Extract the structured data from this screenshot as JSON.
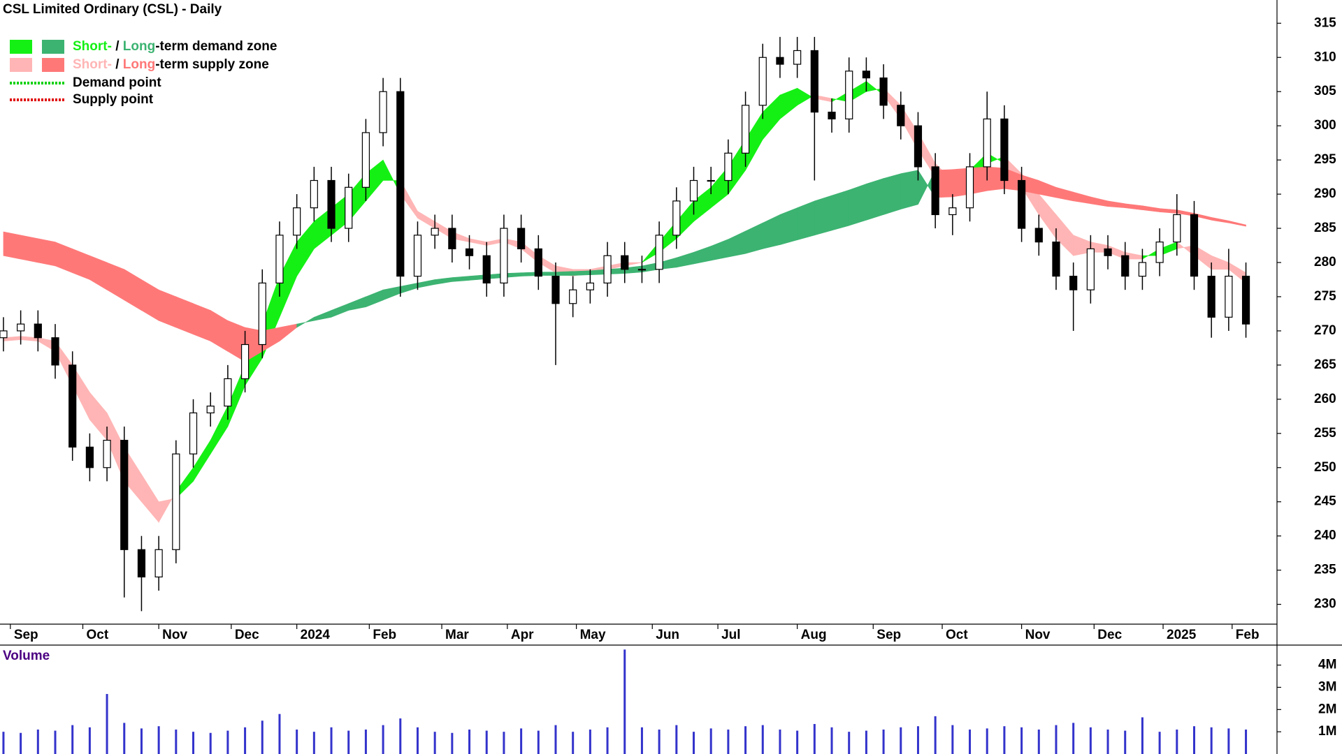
{
  "chart_data": {
    "type": "candlestick",
    "title": "CSL Limited Ordinary (CSL) - Daily",
    "xlim": [
      0,
      370
    ],
    "xticks": [
      {
        "value": 3,
        "label": "Sep"
      },
      {
        "value": 24,
        "label": "Oct"
      },
      {
        "value": 46,
        "label": "Nov"
      },
      {
        "value": 67,
        "label": "Dec"
      },
      {
        "value": 86,
        "label": "2024"
      },
      {
        "value": 107,
        "label": "Feb"
      },
      {
        "value": 128,
        "label": "Mar"
      },
      {
        "value": 147,
        "label": "Apr"
      },
      {
        "value": 167,
        "label": "May"
      },
      {
        "value": 189,
        "label": "Jun"
      },
      {
        "value": 208,
        "label": "Jul"
      },
      {
        "value": 231,
        "label": "Aug"
      },
      {
        "value": 253,
        "label": "Sep"
      },
      {
        "value": 273,
        "label": "Oct"
      },
      {
        "value": 296,
        "label": "Nov"
      },
      {
        "value": 317,
        "label": "Dec"
      },
      {
        "value": 337,
        "label": "2025"
      },
      {
        "value": 357,
        "label": "Feb"
      }
    ],
    "ylim": [
      227.1,
      318.4
    ],
    "yticks": [
      230,
      235,
      240,
      245,
      250,
      255,
      260,
      265,
      270,
      275,
      280,
      285,
      290,
      295,
      300,
      305,
      310,
      315
    ],
    "up_color": "#ffffff",
    "down_color": "#000000",
    "x": [
      1,
      6,
      11,
      16,
      21,
      26,
      31,
      36,
      41,
      46,
      51,
      56,
      61,
      66,
      71,
      76,
      81,
      86,
      91,
      96,
      101,
      106,
      111,
      116,
      121,
      126,
      131,
      136,
      141,
      146,
      151,
      156,
      161,
      166,
      171,
      176,
      181,
      186,
      191,
      196,
      201,
      206,
      211,
      216,
      221,
      226,
      231,
      236,
      241,
      246,
      251,
      256,
      261,
      266,
      271,
      276,
      281,
      286,
      291,
      296,
      301,
      306,
      311,
      316,
      321,
      326,
      331,
      336,
      341,
      346,
      351,
      356,
      361
    ],
    "open": [
      269,
      270,
      271,
      269,
      265,
      253,
      250,
      254,
      238,
      234,
      238,
      252,
      258,
      259,
      263,
      268,
      277,
      284,
      288,
      292,
      285,
      291,
      299,
      305,
      278,
      284,
      285,
      282,
      281,
      277,
      285,
      282,
      278,
      274,
      276,
      277,
      281,
      279,
      279,
      284,
      289,
      292,
      292,
      296,
      303,
      310,
      309,
      311,
      302,
      301,
      308,
      307,
      303,
      300,
      294,
      287,
      288,
      294,
      301,
      292,
      285,
      283,
      278,
      276,
      282,
      281,
      278,
      280,
      283,
      287,
      278,
      272,
      278
    ],
    "high": [
      272,
      273,
      273,
      271,
      267,
      255,
      256,
      256,
      240,
      240,
      254,
      260,
      261,
      265,
      270,
      279,
      286,
      290,
      294,
      294,
      293,
      301,
      307,
      307,
      286,
      287,
      287,
      284,
      283,
      287,
      287,
      284,
      280,
      278,
      279,
      283,
      283,
      281,
      286,
      291,
      294,
      294,
      298,
      305,
      312,
      313,
      313,
      313,
      304,
      310,
      310,
      309,
      305,
      302,
      296,
      290,
      296,
      305,
      303,
      294,
      287,
      285,
      280,
      284,
      284,
      283,
      282,
      285,
      290,
      289,
      280,
      282,
      280
    ],
    "low": [
      267,
      268,
      267,
      263,
      251,
      248,
      248,
      231,
      229,
      232,
      236,
      250,
      256,
      257,
      261,
      266,
      275,
      282,
      286,
      283,
      283,
      289,
      297,
      275,
      276,
      282,
      280,
      279,
      275,
      275,
      280,
      276,
      265,
      272,
      274,
      275,
      277,
      277,
      277,
      282,
      287,
      290,
      290,
      294,
      301,
      307,
      307,
      292,
      299,
      299,
      305,
      301,
      298,
      292,
      285,
      284,
      286,
      292,
      290,
      283,
      281,
      276,
      270,
      274,
      279,
      276,
      276,
      278,
      281,
      276,
      269,
      270,
      269
    ],
    "close": [
      270,
      271,
      269,
      265,
      253,
      250,
      254,
      238,
      234,
      238,
      252,
      258,
      259,
      263,
      268,
      277,
      284,
      288,
      292,
      285,
      291,
      299,
      305,
      278,
      284,
      285,
      282,
      281,
      277,
      285,
      282,
      278,
      274,
      276,
      277,
      281,
      279,
      279,
      284,
      289,
      292,
      292,
      296,
      303,
      310,
      309,
      311,
      302,
      301,
      308,
      307,
      303,
      300,
      294,
      287,
      288,
      294,
      301,
      292,
      285,
      283,
      278,
      276,
      282,
      281,
      278,
      280,
      283,
      287,
      278,
      272,
      278,
      271
    ],
    "zones": [
      {
        "demand_color": "#14f014",
        "supply_color": "#ffb5b5",
        "fast": [
          268.5,
          268.7,
          268.5,
          267,
          262,
          257,
          254,
          248,
          245,
          242,
          246.5,
          250,
          254,
          259,
          265,
          271,
          278,
          283,
          286,
          288,
          290,
          293,
          295,
          290,
          286.5,
          285,
          283.5,
          283,
          282.5,
          283,
          282,
          280,
          278.5,
          278,
          278.5,
          279,
          279.5,
          280,
          283,
          286,
          289,
          291,
          294,
          298,
          302,
          304.5,
          305.5,
          304,
          303.5,
          305,
          306.5,
          304.5,
          301,
          296.5,
          292.5,
          291,
          293.5,
          296,
          294.5,
          291,
          287,
          283.5,
          281,
          281.5,
          281.5,
          280.5,
          280.5,
          282,
          283,
          281,
          279,
          279,
          277
        ],
        "slow": [
          269,
          269.2,
          269,
          268.5,
          265,
          261,
          258,
          253,
          249,
          245,
          245.5,
          248,
          252,
          256,
          262,
          266,
          272,
          278,
          282,
          284,
          286,
          289,
          292,
          292,
          287.5,
          286,
          284.5,
          283.5,
          283,
          283.5,
          283,
          281,
          279.5,
          279,
          279,
          279.5,
          280,
          280,
          281.5,
          283.5,
          286,
          288,
          290,
          293.5,
          298,
          301,
          303,
          304.5,
          304,
          303.5,
          305,
          305.5,
          303,
          299,
          294.5,
          292,
          292,
          294.5,
          295.5,
          293,
          290,
          287,
          284,
          283,
          282.5,
          281.5,
          281,
          281,
          282,
          282.5,
          281,
          280,
          278.5
        ]
      },
      {
        "demand_color": "#3cb371",
        "supply_color": "#ff7878",
        "fast": [
          281,
          280.5,
          280,
          279.5,
          278.5,
          277.5,
          276,
          274.5,
          273,
          271.5,
          270.5,
          269.5,
          268.5,
          267,
          265.5,
          267,
          268.5,
          270.5,
          272,
          273,
          274,
          275,
          276,
          276.5,
          277,
          277.5,
          277.8,
          278,
          278.2,
          278.4,
          278.5,
          278.6,
          278.6,
          278.7,
          278.8,
          279,
          279.2,
          279.5,
          280,
          280.7,
          281.5,
          282.4,
          283.4,
          284.6,
          285.8,
          287,
          288,
          289,
          289.8,
          290.6,
          291.5,
          292.3,
          293,
          293.5,
          289.5,
          289.6,
          290,
          290.5,
          290.8,
          290.5,
          290,
          289.5,
          289,
          288.6,
          288.2,
          288,
          287.7,
          287.4,
          287.2,
          286.8,
          286.2,
          285.8,
          285.3
        ],
        "slow": [
          284.5,
          284,
          283.5,
          283,
          282,
          281,
          280,
          279,
          277.5,
          276,
          275,
          274,
          273,
          271.5,
          270.5,
          270,
          270.5,
          271,
          271.5,
          272,
          273,
          273.5,
          274.5,
          275.5,
          276.3,
          276.8,
          277.2,
          277.4,
          277.6,
          277.8,
          278,
          278.1,
          278.1,
          278.1,
          278.2,
          278.3,
          278.4,
          278.6,
          279,
          279.3,
          279.8,
          280.3,
          280.8,
          281.3,
          282,
          282.6,
          283.3,
          284,
          284.7,
          285.4,
          286.2,
          287,
          287.8,
          288.5,
          293.5,
          293.6,
          293.8,
          294,
          293.8,
          292.8,
          292,
          291,
          290.3,
          289.6,
          289,
          288.6,
          288.3,
          287.9,
          287.7,
          287.2,
          286.6,
          286.1,
          285.5
        ]
      }
    ],
    "legend": [
      {
        "parts": [
          "Short-",
          " / ",
          "Long",
          "-term demand zone"
        ]
      },
      {
        "parts": [
          "Short-",
          " / ",
          "Long",
          "-term supply zone"
        ]
      },
      {
        "label": "Demand point",
        "color": "#00d000"
      },
      {
        "label": "Supply point",
        "color": "#e00000"
      }
    ],
    "volume": {
      "label": "Volume",
      "color": "#3333cc",
      "ylim": [
        0,
        4900000
      ],
      "yticks": [
        {
          "value": 1000000,
          "label": "1M"
        },
        {
          "value": 2000000,
          "label": "2M"
        },
        {
          "value": 3000000,
          "label": "3M"
        },
        {
          "value": 4000000,
          "label": "4M"
        }
      ],
      "values": [
        1000000,
        950000,
        1100000,
        1050000,
        1300000,
        1200000,
        2700000,
        1400000,
        1150000,
        1250000,
        1100000,
        1000000,
        950000,
        1050000,
        1200000,
        1500000,
        1800000,
        1100000,
        1000000,
        1200000,
        1050000,
        1100000,
        1300000,
        1600000,
        1200000,
        1000000,
        950000,
        1100000,
        1050000,
        1000000,
        1150000,
        1050000,
        1300000,
        1000000,
        1100000,
        1200000,
        4700000,
        1200000,
        1100000,
        1300000,
        1000000,
        1150000,
        1100000,
        1250000,
        1300000,
        1100000,
        1050000,
        1350000,
        1200000,
        1000000,
        1050000,
        1100000,
        1200000,
        1250000,
        1700000,
        1300000,
        1100000,
        1150000,
        1250000,
        1200000,
        1100000,
        1300000,
        1400000,
        1200000,
        1100000,
        1050000,
        1650000,
        1000000,
        1100000,
        1250000,
        1200000,
        1150000,
        1100000
      ]
    }
  }
}
